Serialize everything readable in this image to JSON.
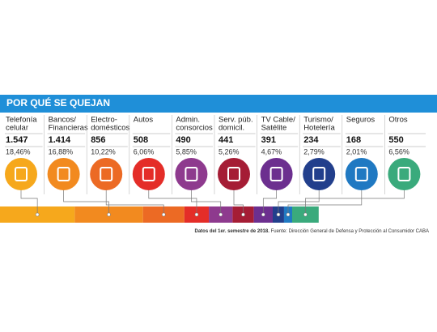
{
  "chart_data": {
    "type": "stacked-bar",
    "title": "POR QUÉ SE QUEJAN",
    "categories": [
      [
        "Telefonía",
        "celular"
      ],
      [
        "Bancos/",
        "Financieras"
      ],
      [
        "Electro-",
        "domésticos"
      ],
      [
        "Autos"
      ],
      [
        "Admin.",
        "consorcios"
      ],
      [
        "Serv. púb.",
        "domicil."
      ],
      [
        "TV Cable/",
        "Satélite"
      ],
      [
        "Turismo/",
        "Hotelería"
      ],
      [
        "Seguros"
      ],
      [
        "Otros"
      ]
    ],
    "values": [
      1547,
      1414,
      856,
      508,
      490,
      441,
      391,
      234,
      168,
      550
    ],
    "value_labels": [
      "1.547",
      "1.414",
      "856",
      "508",
      "490",
      "441",
      "391",
      "234",
      "168",
      "550"
    ],
    "shares": [
      18.46,
      16.88,
      10.22,
      6.06,
      5.85,
      5.26,
      4.67,
      2.79,
      2.01,
      6.56
    ],
    "share_labels": [
      "18,46%",
      "16,88%",
      "10,22%",
      "6,06%",
      "5,85%",
      "5,26%",
      "4,67%",
      "2,79%",
      "2,01%",
      "6,56%"
    ],
    "colors": [
      "#f6a81c",
      "#f28a1f",
      "#ec6a24",
      "#e42d28",
      "#8e3a8e",
      "#a51d35",
      "#6c2f8f",
      "#223f8c",
      "#2079c2",
      "#3aaa7c"
    ],
    "source_bold": "Datos del 1er. semestre de 2018.",
    "source": "Fuente: Dirección General de Defensa y Protección al Consumidor CABA"
  }
}
